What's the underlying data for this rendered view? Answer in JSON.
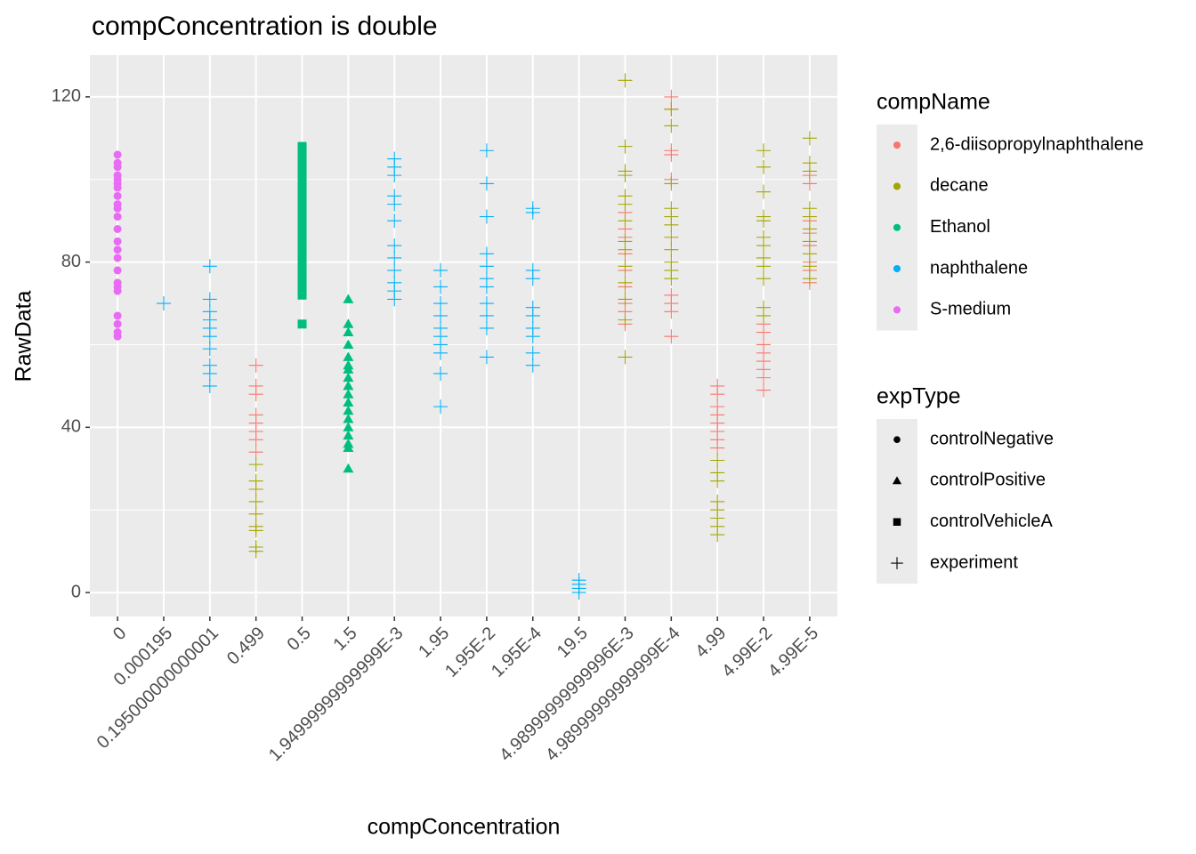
{
  "chart_data": {
    "type": "scatter",
    "title": "compConcentration is double",
    "x_label": "compConcentration",
    "y_label": "RawData",
    "categories": [
      "0",
      "0.000195",
      "0.195000000000001",
      "0.499",
      "0.5",
      "1.5",
      "1.94999999999999E-3",
      "1.95",
      "1.95E-2",
      "1.95E-4",
      "19.5",
      "4.98999999999996E-3",
      "4.98999999999999E-4",
      "4.99",
      "4.99E-2",
      "4.99E-5"
    ],
    "ylim": [
      -5.8,
      130.1
    ],
    "yticks": [
      0,
      40,
      80,
      120
    ],
    "y_minor_grid": [
      20,
      60,
      100
    ],
    "grid": true,
    "legends": [
      {
        "title": "compName",
        "items": [
          {
            "name": "2,6-diisopropylnaphthalene",
            "color": "#F8766D"
          },
          {
            "name": "decane",
            "color": "#A3A500"
          },
          {
            "name": "Ethanol",
            "color": "#00BF7D"
          },
          {
            "name": "naphthalene",
            "color": "#00B0F6"
          },
          {
            "name": "S-medium",
            "color": "#E76BF3"
          }
        ]
      },
      {
        "title": "expType",
        "items": [
          {
            "name": "controlNegative",
            "shape": "circle"
          },
          {
            "name": "controlPositive",
            "shape": "triangle"
          },
          {
            "name": "controlVehicleA",
            "shape": "square"
          },
          {
            "name": "experiment",
            "shape": "plus"
          }
        ]
      }
    ],
    "groups": [
      {
        "comp": "S-medium",
        "exp": "controlNegative",
        "x": [
          "0",
          "0",
          "0",
          "0",
          "0",
          "0",
          "0",
          "0",
          "0",
          "0",
          "0",
          "0",
          "0",
          "0",
          "0",
          "0",
          "0",
          "0",
          "0",
          "0",
          "0",
          "0",
          "0"
        ],
        "values": [
          62,
          63,
          65,
          67,
          73,
          74,
          75,
          78,
          81,
          83,
          85,
          88,
          91,
          93,
          94,
          96,
          98,
          99,
          100,
          101,
          103,
          104,
          106
        ]
      },
      {
        "comp": "Ethanol",
        "exp": "controlVehicleA",
        "x": [
          "0.5",
          "0.5",
          "0.5",
          "0.5",
          "0.5",
          "0.5",
          "0.5",
          "0.5",
          "0.5",
          "0.5",
          "0.5",
          "0.5",
          "0.5",
          "0.5",
          "0.5",
          "0.5",
          "0.5",
          "0.5",
          "0.5",
          "0.5",
          "0.5",
          "0.5",
          "0.5",
          "0.5",
          "0.5",
          "0.5",
          "0.5",
          "0.5",
          "0.5",
          "0.5",
          "0.5",
          "0.5",
          "0.5",
          "0.5",
          "0.5"
        ],
        "values": [
          65,
          72,
          73,
          74,
          75,
          76,
          77,
          78,
          80,
          81,
          82,
          83,
          85,
          86,
          87,
          88,
          89,
          90,
          91,
          92,
          93,
          94,
          95,
          96,
          97,
          98,
          99,
          100,
          101,
          102,
          103,
          104,
          106,
          107,
          108
        ]
      },
      {
        "comp": "Ethanol",
        "exp": "controlPositive",
        "x": [
          "1.5",
          "1.5",
          "1.5",
          "1.5",
          "1.5",
          "1.5",
          "1.5",
          "1.5",
          "1.5",
          "1.5",
          "1.5",
          "1.5",
          "1.5",
          "1.5",
          "1.5",
          "1.5",
          "1.5",
          "1.5"
        ],
        "values": [
          71,
          65,
          63,
          60,
          57,
          55,
          54,
          52,
          50,
          48,
          46,
          44,
          42,
          40,
          38,
          36,
          35,
          30
        ]
      },
      {
        "comp": "naphthalene",
        "exp": "experiment",
        "x": [
          "0.000195",
          "0.195000000000001",
          "0.195000000000001",
          "0.195000000000001",
          "0.195000000000001",
          "0.195000000000001",
          "0.195000000000001",
          "0.195000000000001",
          "0.195000000000001",
          "0.195000000000001",
          "0.195000000000001",
          "1.94999999999999E-3",
          "1.94999999999999E-3",
          "1.94999999999999E-3",
          "1.94999999999999E-3",
          "1.94999999999999E-3",
          "1.94999999999999E-3",
          "1.94999999999999E-3",
          "1.94999999999999E-3",
          "1.94999999999999E-3",
          "1.94999999999999E-3",
          "1.94999999999999E-3",
          "1.94999999999999E-3",
          "1.95",
          "1.95",
          "1.95",
          "1.95",
          "1.95",
          "1.95",
          "1.95",
          "1.95",
          "1.95",
          "1.95",
          "1.95E-2",
          "1.95E-2",
          "1.95E-2",
          "1.95E-2",
          "1.95E-2",
          "1.95E-2",
          "1.95E-2",
          "1.95E-2",
          "1.95E-2",
          "1.95E-2",
          "1.95E-2",
          "1.95E-4",
          "1.95E-4",
          "1.95E-4",
          "1.95E-4",
          "1.95E-4",
          "1.95E-4",
          "1.95E-4",
          "1.95E-4",
          "1.95E-4",
          "1.95E-4",
          "19.5",
          "19.5",
          "19.5",
          "19.5"
        ],
        "values": [
          70,
          79,
          71,
          68,
          66,
          64,
          62,
          59,
          55,
          53,
          50,
          105,
          103,
          101,
          96,
          94,
          90,
          84,
          81,
          78,
          75,
          73,
          71,
          78,
          74,
          70,
          67,
          64,
          62,
          60,
          58,
          53,
          45,
          107,
          99,
          91,
          82,
          79,
          76,
          74,
          70,
          67,
          64,
          57,
          93,
          92,
          78,
          76,
          69,
          67,
          64,
          62,
          58,
          55,
          3,
          2,
          1,
          0
        ]
      },
      {
        "comp": "2,6-diisopropylnaphthalene",
        "exp": "experiment",
        "x": [
          "0.499",
          "0.499",
          "0.499",
          "0.499",
          "0.499",
          "0.499",
          "0.499",
          "0.499",
          "4.98999999999996E-3",
          "4.98999999999996E-3",
          "4.98999999999996E-3",
          "4.98999999999996E-3",
          "4.98999999999996E-3",
          "4.98999999999996E-3",
          "4.98999999999996E-3",
          "4.98999999999996E-3",
          "4.98999999999996E-3",
          "4.98999999999999E-4",
          "4.98999999999999E-4",
          "4.98999999999999E-4",
          "4.98999999999999E-4",
          "4.98999999999999E-4",
          "4.98999999999999E-4",
          "4.98999999999999E-4",
          "4.98999999999999E-4",
          "4.98999999999999E-4",
          "4.99",
          "4.99",
          "4.99",
          "4.99",
          "4.99",
          "4.99",
          "4.99",
          "4.99",
          "4.99E-2",
          "4.99E-2",
          "4.99E-2",
          "4.99E-2",
          "4.99E-2",
          "4.99E-2",
          "4.99E-2",
          "4.99E-2",
          "4.99E-5",
          "4.99E-5",
          "4.99E-5",
          "4.99E-5",
          "4.99E-5",
          "4.99E-5",
          "4.99E-5",
          "4.99E-5"
        ],
        "values": [
          55,
          50,
          48,
          43,
          41,
          39,
          37,
          34,
          92,
          88,
          86,
          82,
          78,
          74,
          70,
          68,
          65,
          120,
          117,
          107,
          106,
          100,
          72,
          70,
          68,
          62,
          50,
          48,
          45,
          43,
          41,
          39,
          37,
          35,
          65,
          63,
          60,
          58,
          56,
          54,
          52,
          49,
          101,
          99,
          90,
          87,
          84,
          80,
          78,
          75
        ]
      },
      {
        "comp": "decane",
        "exp": "experiment",
        "x": [
          "0.499",
          "0.499",
          "0.499",
          "0.499",
          "0.499",
          "0.499",
          "0.499",
          "0.499",
          "0.499",
          "4.98999999999996E-3",
          "4.98999999999996E-3",
          "4.98999999999996E-3",
          "4.98999999999996E-3",
          "4.98999999999996E-3",
          "4.98999999999996E-3",
          "4.98999999999996E-3",
          "4.98999999999996E-3",
          "4.98999999999996E-3",
          "4.98999999999996E-3",
          "4.98999999999996E-3",
          "4.98999999999996E-3",
          "4.98999999999996E-3",
          "4.98999999999996E-3",
          "4.98999999999999E-4",
          "4.98999999999999E-4",
          "4.98999999999999E-4",
          "4.98999999999999E-4",
          "4.98999999999999E-4",
          "4.98999999999999E-4",
          "4.98999999999999E-4",
          "4.98999999999999E-4",
          "4.98999999999999E-4",
          "4.98999999999999E-4",
          "4.98999999999999E-4",
          "4.99",
          "4.99",
          "4.99",
          "4.99",
          "4.99",
          "4.99",
          "4.99",
          "4.99",
          "4.99E-2",
          "4.99E-2",
          "4.99E-2",
          "4.99E-2",
          "4.99E-2",
          "4.99E-2",
          "4.99E-2",
          "4.99E-2",
          "4.99E-2",
          "4.99E-2",
          "4.99E-2",
          "4.99E-2",
          "4.99E-5",
          "4.99E-5",
          "4.99E-5",
          "4.99E-5",
          "4.99E-5",
          "4.99E-5",
          "4.99E-5",
          "4.99E-5",
          "4.99E-5",
          "4.99E-5"
        ],
        "values": [
          31,
          27,
          25,
          22,
          19,
          16,
          15,
          11,
          10,
          124,
          108,
          102,
          101,
          96,
          94,
          90,
          85,
          83,
          79,
          75,
          71,
          66,
          57,
          117,
          113,
          99,
          93,
          91,
          89,
          86,
          83,
          80,
          78,
          76,
          32,
          29,
          27,
          22,
          20,
          18,
          16,
          14,
          107,
          103,
          97,
          91,
          90,
          86,
          84,
          81,
          79,
          76,
          69,
          67,
          110,
          104,
          102,
          93,
          91,
          88,
          85,
          82,
          79,
          76
        ]
      }
    ]
  }
}
